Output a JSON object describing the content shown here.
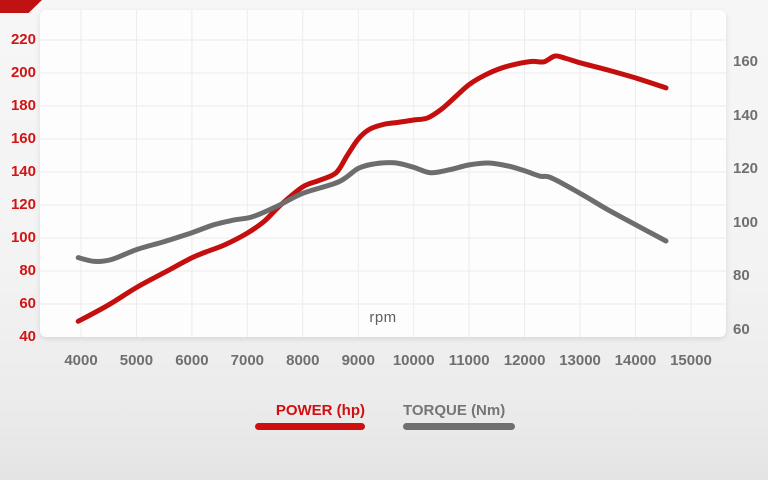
{
  "page": {
    "rpm_axis_label": "rpm"
  },
  "legend": {
    "power_label": "POWER (hp)",
    "torque_label": "TORQUE (Nm)"
  },
  "colors": {
    "power_line": "#c50e0e",
    "power_tick_text": "#d21414",
    "torque_line": "#6d6d6d",
    "axis_tick_text": "#6f6f6f",
    "grid": "#ececec",
    "card_bg": "#fdfdfd",
    "ribbon": "#c01212"
  },
  "chart_data": {
    "type": "line",
    "xlabel": "rpm",
    "x_ticks": [
      4000,
      5000,
      6000,
      7000,
      8000,
      9000,
      10000,
      11000,
      12000,
      13000,
      14000,
      15000
    ],
    "x_range": [
      3250,
      15630
    ],
    "left_axis": {
      "label": "POWER (hp)",
      "ticks": [
        220,
        200,
        180,
        160,
        140,
        120,
        100,
        80,
        60,
        40
      ],
      "range": [
        40,
        220
      ]
    },
    "right_axis": {
      "label": "TORQUE (Nm)",
      "ticks": [
        160,
        140,
        120,
        100,
        80,
        60
      ],
      "range": [
        60,
        160
      ]
    },
    "grid": true,
    "legend_position": "bottom",
    "series": [
      {
        "name": "POWER (hp)",
        "axis": "left",
        "color": "#c50e0e",
        "points": [
          [
            3950,
            49.5
          ],
          [
            4500,
            59.5
          ],
          [
            5000,
            70
          ],
          [
            5500,
            79
          ],
          [
            6000,
            88
          ],
          [
            6250,
            91.5
          ],
          [
            6600,
            96
          ],
          [
            7000,
            103
          ],
          [
            7300,
            110
          ],
          [
            7600,
            120
          ],
          [
            8000,
            131
          ],
          [
            8300,
            135
          ],
          [
            8600,
            139.5
          ],
          [
            8800,
            150
          ],
          [
            9000,
            160
          ],
          [
            9200,
            165.8
          ],
          [
            9450,
            168.8
          ],
          [
            9700,
            170
          ],
          [
            10000,
            171.5
          ],
          [
            10250,
            172.8
          ],
          [
            10500,
            178
          ],
          [
            10750,
            185.5
          ],
          [
            11000,
            193
          ],
          [
            11300,
            199
          ],
          [
            11600,
            203.2
          ],
          [
            11900,
            205.8
          ],
          [
            12150,
            207
          ],
          [
            12350,
            206.8
          ],
          [
            12550,
            210.3
          ],
          [
            12750,
            208.8
          ],
          [
            13000,
            206.2
          ],
          [
            13500,
            201.8
          ],
          [
            14000,
            197
          ],
          [
            14550,
            191
          ]
        ]
      },
      {
        "name": "TORQUE (Nm)",
        "axis": "right",
        "color": "#6d6d6d",
        "points": [
          [
            3950,
            87
          ],
          [
            4250,
            85.6
          ],
          [
            4550,
            86.3
          ],
          [
            5000,
            90
          ],
          [
            5500,
            93
          ],
          [
            6000,
            96.3
          ],
          [
            6400,
            99.3
          ],
          [
            6750,
            101
          ],
          [
            7100,
            102.3
          ],
          [
            7550,
            106.3
          ],
          [
            8000,
            111
          ],
          [
            8650,
            115.3
          ],
          [
            9000,
            120.3
          ],
          [
            9300,
            122
          ],
          [
            9650,
            122.4
          ],
          [
            10000,
            120.7
          ],
          [
            10300,
            118.7
          ],
          [
            10650,
            119.8
          ],
          [
            11000,
            121.6
          ],
          [
            11350,
            122.3
          ],
          [
            11700,
            121.2
          ],
          [
            12000,
            119.4
          ],
          [
            12280,
            117.4
          ],
          [
            12480,
            116.8
          ],
          [
            13000,
            111
          ],
          [
            13500,
            104.9
          ],
          [
            14000,
            99.3
          ],
          [
            14550,
            93.2
          ]
        ]
      }
    ]
  }
}
